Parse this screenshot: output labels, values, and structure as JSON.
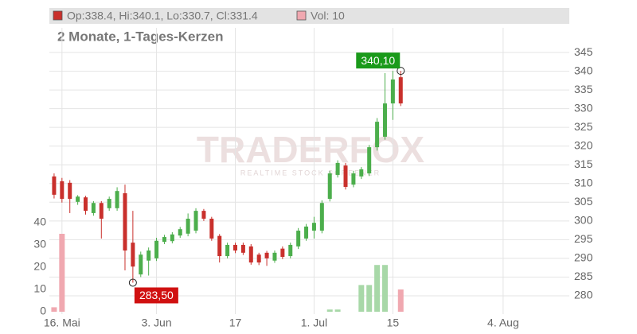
{
  "chart_data": {
    "type": "candlestick",
    "subtitle": "2 Monate, 1-Tages-Kerzen",
    "ohlc_label": "Op:338.4, Hi:340.1, Lo:330.7, Cl:331.4",
    "volume_label": "Vol: 10",
    "watermark": "TRADERFOX",
    "watermark_sub": "REALTIME STOCK SCREENER",
    "up_color": "#4cae4c",
    "down_color": "#c9302c",
    "volume_up_color": "#a8d8a8",
    "volume_down_color": "#f0a8b0",
    "grid": true,
    "x": [
      0,
      1,
      2,
      3,
      4,
      5,
      6,
      7,
      8,
      9,
      10,
      11,
      12,
      13,
      14,
      15,
      16,
      17,
      18,
      19,
      20,
      21,
      22,
      23,
      24,
      25,
      26,
      27,
      28,
      29,
      30,
      31,
      32,
      33,
      34,
      35,
      36,
      37,
      38,
      39,
      40,
      41,
      42,
      43,
      44
    ],
    "open": [
      311.9,
      310.6,
      310.2,
      305.1,
      306.3,
      302.1,
      304.8,
      303.4,
      303.4,
      307.4,
      294.2,
      285.7,
      289.4,
      290.0,
      294.4,
      294.6,
      296.1,
      296.6,
      297.4,
      302.7,
      300.6,
      296.0,
      290.6,
      293.6,
      293.6,
      293.2,
      291.0,
      291.5,
      289.4,
      292.6,
      290.6,
      293.2,
      295.3,
      297.4,
      297.4,
      305.9,
      312.3,
      314.8,
      309.7,
      311.9,
      312.7,
      319.7,
      322.5,
      331.4,
      338.4
    ],
    "high": [
      312.7,
      311.5,
      310.9,
      306.9,
      306.7,
      305.3,
      305.3,
      306.5,
      309.0,
      309.7,
      302.7,
      291.8,
      292.9,
      295.5,
      296.3,
      297.0,
      298.4,
      302.0,
      303.4,
      303.2,
      301.1,
      296.5,
      294.2,
      294.2,
      294.2,
      293.8,
      291.5,
      292.0,
      292.1,
      293.2,
      294.2,
      298.1,
      299.2,
      301.1,
      305.5,
      313.4,
      316.2,
      315.5,
      313.4,
      314.4,
      320.3,
      327.5,
      339.5,
      340.1,
      340.1
    ],
    "low": [
      306.0,
      304.9,
      302.1,
      304.3,
      301.7,
      301.4,
      295.3,
      302.7,
      302.7,
      286.8,
      283.5,
      285.0,
      285.4,
      289.3,
      293.8,
      294.0,
      295.5,
      295.9,
      296.7,
      300.0,
      294.7,
      288.9,
      290.0,
      291.4,
      290.9,
      288.3,
      288.2,
      288.0,
      288.8,
      289.8,
      290.0,
      292.5,
      294.7,
      295.3,
      296.7,
      305.2,
      311.6,
      308.4,
      309.0,
      311.2,
      312.0,
      318.8,
      321.7,
      327.0,
      330.7
    ],
    "close": [
      307.0,
      305.9,
      305.9,
      306.5,
      302.7,
      304.8,
      300.6,
      305.9,
      308.0,
      292.1,
      287.8,
      291.0,
      292.1,
      294.7,
      295.7,
      296.4,
      297.8,
      300.6,
      302.7,
      300.6,
      295.3,
      290.6,
      293.6,
      292.1,
      291.5,
      288.9,
      288.9,
      290.0,
      291.5,
      290.4,
      293.6,
      297.4,
      298.5,
      299.5,
      304.8,
      312.7,
      315.5,
      309.1,
      312.7,
      313.8,
      319.7,
      326.5,
      331.4,
      337.8,
      331.4
    ],
    "volume": [
      2,
      35,
      0,
      0,
      0,
      0,
      0,
      0,
      0,
      0,
      0,
      0,
      0,
      0,
      0,
      0,
      0,
      0,
      0,
      0,
      0,
      0,
      0,
      0,
      0,
      0,
      0,
      0,
      0,
      0,
      0,
      0,
      0,
      0,
      0,
      1,
      1,
      0,
      0,
      12,
      12,
      21,
      21,
      0,
      10
    ],
    "xlim": [
      -0.6,
      65.4
    ],
    "xticks": [
      {
        "value": 1,
        "label": "16. Mai"
      },
      {
        "value": 13,
        "label": "3. Jun"
      },
      {
        "value": 23,
        "label": "17"
      },
      {
        "value": 33,
        "label": "1. Jul"
      },
      {
        "value": 43,
        "label": "15"
      },
      {
        "value": 57,
        "label": "4. Aug"
      }
    ],
    "ylim": [
      275.1,
      351.6
    ],
    "yticks": [
      280,
      285,
      290,
      295,
      300,
      305,
      310,
      315,
      320,
      325,
      330,
      335,
      340,
      345
    ],
    "y2lim": [
      -1.07,
      127.5
    ],
    "y2ticks": [
      0,
      10,
      20,
      30,
      40
    ],
    "annotations": [
      {
        "x": 44,
        "value": 340.1,
        "label": "340,10",
        "color": "#1a9a1a"
      },
      {
        "x": 10,
        "value": 283.5,
        "label": "283,50",
        "color": "#d01010"
      }
    ]
  }
}
